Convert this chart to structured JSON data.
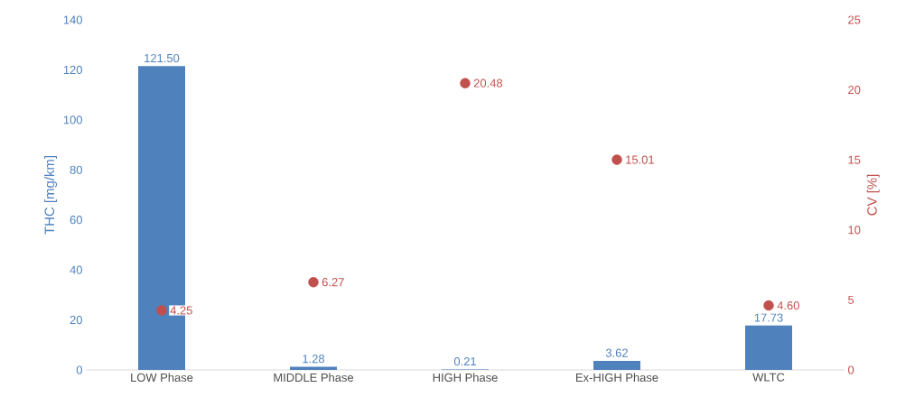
{
  "chart_data": {
    "type": "bar",
    "categories": [
      "LOW Phase",
      "MIDDLE Phase",
      "HIGH Phase",
      "Ex-HIGH Phase",
      "WLTC"
    ],
    "ylabel": "THC [mg/km]",
    "y2label": "CV [%]",
    "ylim": [
      0,
      140
    ],
    "yticks": [
      0,
      20,
      40,
      60,
      80,
      100,
      120,
      140
    ],
    "y2lim": [
      0,
      25
    ],
    "y2ticks": [
      0,
      5,
      10,
      15,
      20,
      25
    ],
    "series": [
      {
        "color": "#4f81bd",
        "values": [
          121.5,
          1.28,
          0.21,
          3.62,
          17.73
        ],
        "value_labels": [
          "121.50",
          "1.28",
          "0.21",
          "3.62",
          "17.73"
        ]
      },
      {
        "type": "scatter",
        "axis": "y2",
        "marker": "circle",
        "color": "#c0504d",
        "values": [
          4.25,
          6.27,
          20.48,
          15.01,
          4.6
        ],
        "value_labels": [
          "4.25",
          "6.27",
          "20.48",
          "15.01",
          "4.60"
        ]
      }
    ]
  }
}
